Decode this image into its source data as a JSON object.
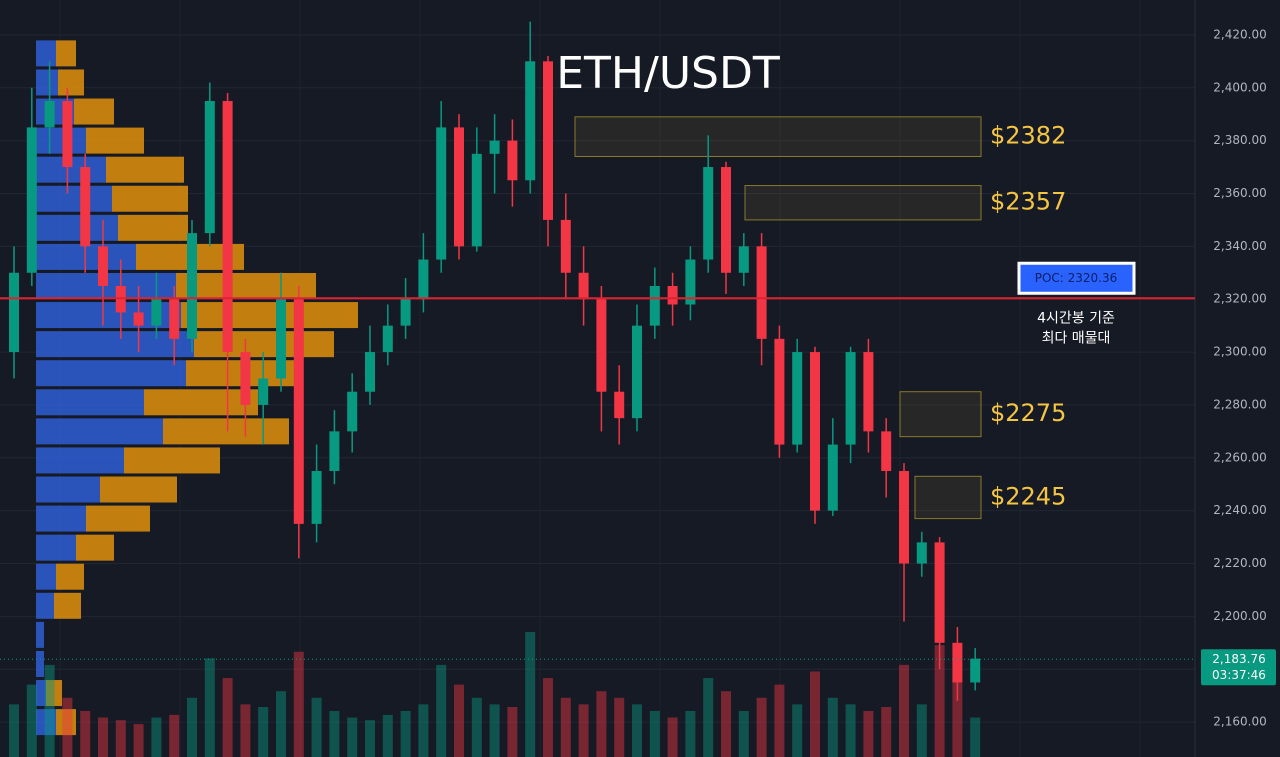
{
  "chart_data": {
    "type": "candlestick",
    "title": "ETH/USDT",
    "ylim": [
      2146.8,
      2433.2
    ],
    "yticks": [
      {
        "value": 2160,
        "label": "2,160.00"
      },
      {
        "value": 2180,
        "label": "2,180.00"
      },
      {
        "value": 2200,
        "label": "2,200.00"
      },
      {
        "value": 2220,
        "label": "2,220.00"
      },
      {
        "value": 2240,
        "label": "2,240.00"
      },
      {
        "value": 2260,
        "label": "2,260.00"
      },
      {
        "value": 2280,
        "label": "2,280.00"
      },
      {
        "value": 2300,
        "label": "2,300.00"
      },
      {
        "value": 2320,
        "label": "2,320.00"
      },
      {
        "value": 2340,
        "label": "2,340.00"
      },
      {
        "value": 2360,
        "label": "2,360.00"
      },
      {
        "value": 2380,
        "label": "2,380.00"
      },
      {
        "value": 2400,
        "label": "2,400.00"
      },
      {
        "value": 2420,
        "label": "2,420.00"
      }
    ],
    "grid": true,
    "up_color": "#089981",
    "down_color": "#f23645",
    "open": [
      2300,
      2330,
      2385,
      2395,
      2370,
      2340,
      2325,
      2315,
      2310,
      2320,
      2305,
      2345,
      2395,
      2300,
      2280,
      2290,
      2320,
      2235,
      2255,
      2270,
      2285,
      2300,
      2310,
      2320,
      2335,
      2385,
      2340,
      2375,
      2380,
      2365,
      2410,
      2350,
      2330,
      2320,
      2285,
      2275,
      2310,
      2325,
      2318,
      2335,
      2370,
      2330,
      2340,
      2305,
      2265,
      2300,
      2240,
      2265,
      2300,
      2270,
      2255,
      2220,
      2228,
      2190,
      2175
    ],
    "high": [
      2340,
      2400,
      2410,
      2400,
      2375,
      2350,
      2335,
      2325,
      2330,
      2325,
      2350,
      2402,
      2398,
      2305,
      2300,
      2330,
      2325,
      2265,
      2278,
      2292,
      2310,
      2318,
      2328,
      2345,
      2395,
      2390,
      2385,
      2390,
      2388,
      2425,
      2412,
      2360,
      2340,
      2325,
      2295,
      2318,
      2332,
      2330,
      2340,
      2382,
      2372,
      2345,
      2345,
      2310,
      2305,
      2302,
      2275,
      2302,
      2305,
      2275,
      2258,
      2232,
      2230,
      2196,
      2188
    ],
    "low": [
      2290,
      2325,
      2375,
      2360,
      2330,
      2310,
      2305,
      2300,
      2305,
      2295,
      2300,
      2340,
      2270,
      2268,
      2265,
      2285,
      2222,
      2228,
      2250,
      2262,
      2280,
      2295,
      2305,
      2315,
      2330,
      2335,
      2338,
      2360,
      2355,
      2360,
      2340,
      2320,
      2310,
      2270,
      2265,
      2270,
      2305,
      2310,
      2312,
      2330,
      2322,
      2325,
      2295,
      2260,
      2262,
      2235,
      2238,
      2258,
      2262,
      2245,
      2198,
      2215,
      2180,
      2168,
      2172
    ],
    "close": [
      2330,
      2385,
      2395,
      2370,
      2340,
      2325,
      2315,
      2310,
      2320,
      2305,
      2345,
      2395,
      2300,
      2280,
      2290,
      2320,
      2235,
      2255,
      2270,
      2285,
      2300,
      2310,
      2320,
      2335,
      2385,
      2340,
      2375,
      2380,
      2365,
      2410,
      2350,
      2330,
      2320,
      2285,
      2275,
      2310,
      2325,
      2318,
      2335,
      2370,
      2330,
      2340,
      2305,
      2265,
      2300,
      2240,
      2265,
      2300,
      2270,
      2255,
      2220,
      2228,
      2190,
      2175,
      2184
    ],
    "volume": [
      40,
      55,
      70,
      45,
      35,
      30,
      28,
      25,
      30,
      32,
      45,
      75,
      60,
      40,
      38,
      50,
      80,
      45,
      35,
      30,
      28,
      32,
      35,
      40,
      70,
      55,
      45,
      40,
      38,
      95,
      60,
      45,
      40,
      50,
      45,
      40,
      35,
      30,
      35,
      60,
      50,
      35,
      45,
      55,
      40,
      65,
      45,
      40,
      35,
      38,
      70,
      40,
      85,
      60,
      30
    ],
    "volume_profile": {
      "prices": [
        2413,
        2402,
        2391,
        2380,
        2369,
        2358,
        2347,
        2336,
        2325,
        2314,
        2303,
        2292,
        2281,
        2270,
        2259,
        2248,
        2237,
        2226,
        2215,
        2204,
        2193,
        2182,
        2171,
        2160
      ],
      "buy": [
        20,
        22,
        38,
        50,
        70,
        76,
        82,
        100,
        140,
        145,
        158,
        150,
        108,
        127,
        88,
        64,
        50,
        40,
        20,
        18,
        8,
        8,
        10,
        20
      ],
      "sell": [
        20,
        26,
        40,
        58,
        78,
        76,
        70,
        108,
        140,
        177,
        140,
        112,
        114,
        126,
        96,
        77,
        64,
        38,
        28,
        27,
        0,
        0,
        16,
        20
      ],
      "buy_color": "#2f5fd6",
      "sell_color": "#e0900c"
    },
    "levels": [
      {
        "label": "$2382",
        "low": 2374,
        "high": 2389
      },
      {
        "label": "$2357",
        "low": 2350,
        "high": 2363
      },
      {
        "label": "$2275",
        "low": 2268,
        "high": 2285
      },
      {
        "label": "$2245",
        "low": 2237,
        "high": 2253
      }
    ],
    "poc": {
      "value": 2320.36,
      "label": "POC: 2320.36"
    },
    "poc_note": [
      "4시간봉 기준",
      "최다 매물대"
    ],
    "last_price": {
      "value": 2183.76,
      "label": "2,183.76"
    },
    "countdown": "03:37:46"
  }
}
